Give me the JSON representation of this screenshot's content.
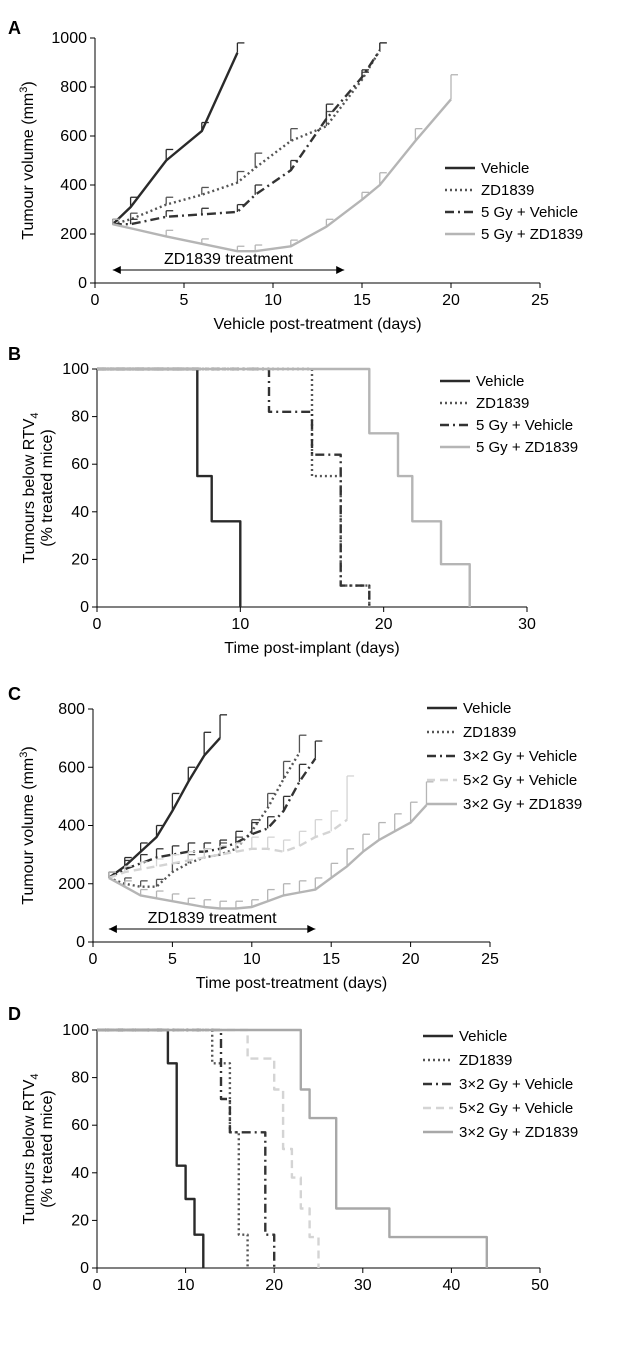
{
  "chart_data": [
    {
      "panel": "A",
      "type": "line",
      "ylabel": "Tumour volume (mm3)",
      "xlabel": "Vehicle post-treatment (days)",
      "xlim": [
        0,
        25
      ],
      "ylim": [
        0,
        1000
      ],
      "xticks": [
        0,
        5,
        10,
        15,
        20,
        25
      ],
      "yticks": [
        0,
        200,
        400,
        600,
        800,
        1000
      ],
      "annotation": "ZD1839 treatment",
      "annotation_range": [
        1,
        14
      ],
      "legend_position": "right",
      "series": [
        {
          "name": "Vehicle",
          "color": "#2a2a2a",
          "dash": "solid",
          "x": [
            1,
            2,
            4,
            6,
            8
          ],
          "y": [
            240,
            310,
            500,
            620,
            940
          ],
          "err": [
            20,
            40,
            45,
            35,
            40
          ]
        },
        {
          "name": "ZD1839",
          "color": "#555555",
          "dash": "dot",
          "x": [
            1,
            2,
            4,
            6,
            8,
            9,
            11,
            13,
            15,
            16
          ],
          "y": [
            240,
            260,
            320,
            360,
            410,
            470,
            580,
            640,
            830,
            950
          ],
          "err": [
            20,
            25,
            30,
            30,
            45,
            60,
            50,
            60,
            30,
            30
          ]
        },
        {
          "name": "5 Gy + Vehicle",
          "color": "#333333",
          "dash": "dashdot",
          "x": [
            1,
            2,
            4,
            6,
            8,
            9,
            11,
            13,
            15,
            16
          ],
          "y": [
            240,
            240,
            270,
            280,
            290,
            360,
            460,
            670,
            840,
            950
          ],
          "err": [
            20,
            20,
            25,
            25,
            30,
            40,
            40,
            60,
            30,
            30
          ]
        },
        {
          "name": "5 Gy + ZD1839",
          "color": "#b5b5b5",
          "dash": "solid",
          "x": [
            1,
            4,
            6,
            8,
            9,
            11,
            13,
            15,
            16,
            18,
            20
          ],
          "y": [
            240,
            190,
            160,
            130,
            130,
            150,
            230,
            340,
            400,
            580,
            750
          ],
          "err": [
            20,
            25,
            20,
            20,
            25,
            25,
            30,
            30,
            50,
            50,
            100
          ]
        }
      ]
    },
    {
      "panel": "B",
      "type": "line",
      "ylabel": "Tumours below RTV4",
      "ylabel2": "(% treated mice)",
      "xlabel": "Time post-implant (days)",
      "xlim": [
        0,
        30
      ],
      "ylim": [
        0,
        100
      ],
      "xticks": [
        0,
        10,
        20,
        30
      ],
      "yticks": [
        0,
        20,
        40,
        60,
        80,
        100
      ],
      "legend_position": "right",
      "series": [
        {
          "name": "Vehicle",
          "color": "#2a2a2a",
          "dash": "solid",
          "x": [
            0,
            7,
            7,
            8,
            8,
            10,
            10
          ],
          "y": [
            100,
            100,
            55,
            55,
            36,
            36,
            0
          ]
        },
        {
          "name": "ZD1839",
          "color": "#555555",
          "dash": "dot",
          "x": [
            0,
            15,
            15,
            17,
            17,
            19,
            19
          ],
          "y": [
            100,
            100,
            55,
            55,
            9,
            9,
            0
          ]
        },
        {
          "name": "5 Gy + Vehicle",
          "color": "#333333",
          "dash": "dashdot",
          "x": [
            0,
            12,
            12,
            15,
            15,
            17,
            17,
            19,
            19
          ],
          "y": [
            100,
            100,
            82,
            82,
            64,
            64,
            9,
            9,
            0
          ]
        },
        {
          "name": "5 Gy + ZD1839",
          "color": "#b5b5b5",
          "dash": "solid",
          "x": [
            0,
            19,
            19,
            21,
            21,
            22,
            22,
            24,
            24,
            26,
            26
          ],
          "y": [
            100,
            100,
            73,
            73,
            55,
            55,
            36,
            36,
            18,
            18,
            0
          ]
        }
      ]
    },
    {
      "panel": "C",
      "type": "line",
      "ylabel": "Tumour volume (mm3)",
      "xlabel": "Time post-treatment (days)",
      "xlim": [
        0,
        25
      ],
      "ylim": [
        0,
        800
      ],
      "xticks": [
        0,
        5,
        10,
        15,
        20,
        25
      ],
      "yticks": [
        0,
        200,
        400,
        600,
        800
      ],
      "annotation": "ZD1839 treatment",
      "annotation_range": [
        1,
        14
      ],
      "legend_position": "right",
      "series": [
        {
          "name": "Vehicle",
          "color": "#2a2a2a",
          "dash": "solid",
          "x": [
            1,
            2,
            3,
            4,
            5,
            6,
            7,
            8
          ],
          "y": [
            220,
            260,
            310,
            360,
            450,
            550,
            640,
            700
          ],
          "err": [
            20,
            30,
            30,
            40,
            60,
            50,
            80,
            80
          ]
        },
        {
          "name": "ZD1839",
          "color": "#555555",
          "dash": "dot",
          "x": [
            1,
            2,
            3,
            4,
            5,
            6,
            7,
            8,
            9,
            10,
            11,
            12,
            13
          ],
          "y": [
            220,
            200,
            190,
            190,
            240,
            270,
            290,
            300,
            320,
            380,
            460,
            560,
            650
          ],
          "err": [
            20,
            20,
            20,
            25,
            30,
            30,
            30,
            40,
            40,
            40,
            50,
            60,
            60
          ]
        },
        {
          "name": "3×2 Gy + Vehicle",
          "color": "#333333",
          "dash": "dashdot",
          "x": [
            1,
            2,
            3,
            4,
            5,
            6,
            7,
            8,
            9,
            10,
            11,
            12,
            13,
            14
          ],
          "y": [
            220,
            250,
            270,
            290,
            300,
            310,
            310,
            320,
            340,
            370,
            390,
            450,
            550,
            630
          ],
          "err": [
            20,
            30,
            30,
            30,
            30,
            30,
            30,
            30,
            40,
            40,
            40,
            50,
            60,
            60
          ]
        },
        {
          "name": "5×2 Gy + Vehicle",
          "color": "#d4d4d4",
          "dash": "dash",
          "x": [
            1,
            2,
            3,
            4,
            5,
            6,
            7,
            8,
            9,
            10,
            11,
            12,
            13,
            14,
            15,
            16
          ],
          "y": [
            220,
            240,
            250,
            260,
            270,
            280,
            290,
            300,
            310,
            320,
            320,
            310,
            330,
            360,
            380,
            420
          ],
          "err": [
            20,
            20,
            25,
            25,
            30,
            30,
            30,
            30,
            30,
            40,
            40,
            40,
            50,
            60,
            70,
            150
          ]
        },
        {
          "name": "3×2 Gy + ZD1839",
          "color": "#b5b5b5",
          "dash": "solid",
          "x": [
            1,
            2,
            3,
            4,
            5,
            6,
            7,
            8,
            9,
            10,
            11,
            12,
            13,
            14,
            15,
            16,
            17,
            18,
            19,
            20,
            21
          ],
          "y": [
            220,
            190,
            160,
            150,
            140,
            130,
            120,
            115,
            115,
            120,
            140,
            160,
            170,
            180,
            220,
            260,
            310,
            350,
            380,
            410,
            470
          ],
          "err": [
            20,
            20,
            20,
            25,
            25,
            20,
            25,
            25,
            25,
            25,
            40,
            40,
            40,
            40,
            50,
            60,
            60,
            60,
            60,
            70,
            80
          ]
        }
      ]
    },
    {
      "panel": "D",
      "type": "line",
      "ylabel": "Tumours below RTV4",
      "ylabel2": "(% treated mice)",
      "xlabel": "",
      "xlim": [
        0,
        50
      ],
      "ylim": [
        0,
        100
      ],
      "xticks": [
        0,
        10,
        20,
        30,
        40,
        50
      ],
      "yticks": [
        0,
        20,
        40,
        60,
        80,
        100
      ],
      "legend_position": "right",
      "series": [
        {
          "name": "Vehicle",
          "color": "#2a2a2a",
          "dash": "solid",
          "x": [
            0,
            8,
            8,
            9,
            9,
            10,
            10,
            11,
            11,
            12,
            12
          ],
          "y": [
            100,
            100,
            86,
            86,
            43,
            43,
            29,
            29,
            14,
            14,
            0
          ]
        },
        {
          "name": "ZD1839",
          "color": "#555555",
          "dash": "dot",
          "x": [
            0,
            13,
            13,
            15,
            15,
            16,
            16,
            17,
            17
          ],
          "y": [
            100,
            100,
            86,
            86,
            57,
            57,
            14,
            14,
            0
          ]
        },
        {
          "name": "3×2 Gy + Vehicle",
          "color": "#333333",
          "dash": "dashdot",
          "x": [
            0,
            14,
            14,
            15,
            15,
            16,
            16,
            19,
            19,
            20,
            20
          ],
          "y": [
            100,
            100,
            71,
            71,
            57,
            57,
            57,
            57,
            14,
            14,
            0
          ]
        },
        {
          "name": "5×2 Gy + Vehicle",
          "color": "#d4d4d4",
          "dash": "dash",
          "x": [
            0,
            17,
            17,
            20,
            20,
            21,
            21,
            22,
            22,
            23,
            23,
            24,
            24,
            25,
            25
          ],
          "y": [
            100,
            100,
            88,
            88,
            75,
            75,
            50,
            50,
            38,
            38,
            25,
            25,
            13,
            13,
            0
          ]
        },
        {
          "name": "3×2 Gy + ZD1839",
          "color": "#a8a8a8",
          "dash": "solid",
          "x": [
            0,
            23,
            23,
            24,
            24,
            25,
            25,
            27,
            27,
            33,
            33,
            44,
            44
          ],
          "y": [
            100,
            100,
            75,
            75,
            63,
            63,
            63,
            63,
            25,
            25,
            13,
            13,
            0
          ]
        }
      ]
    }
  ]
}
